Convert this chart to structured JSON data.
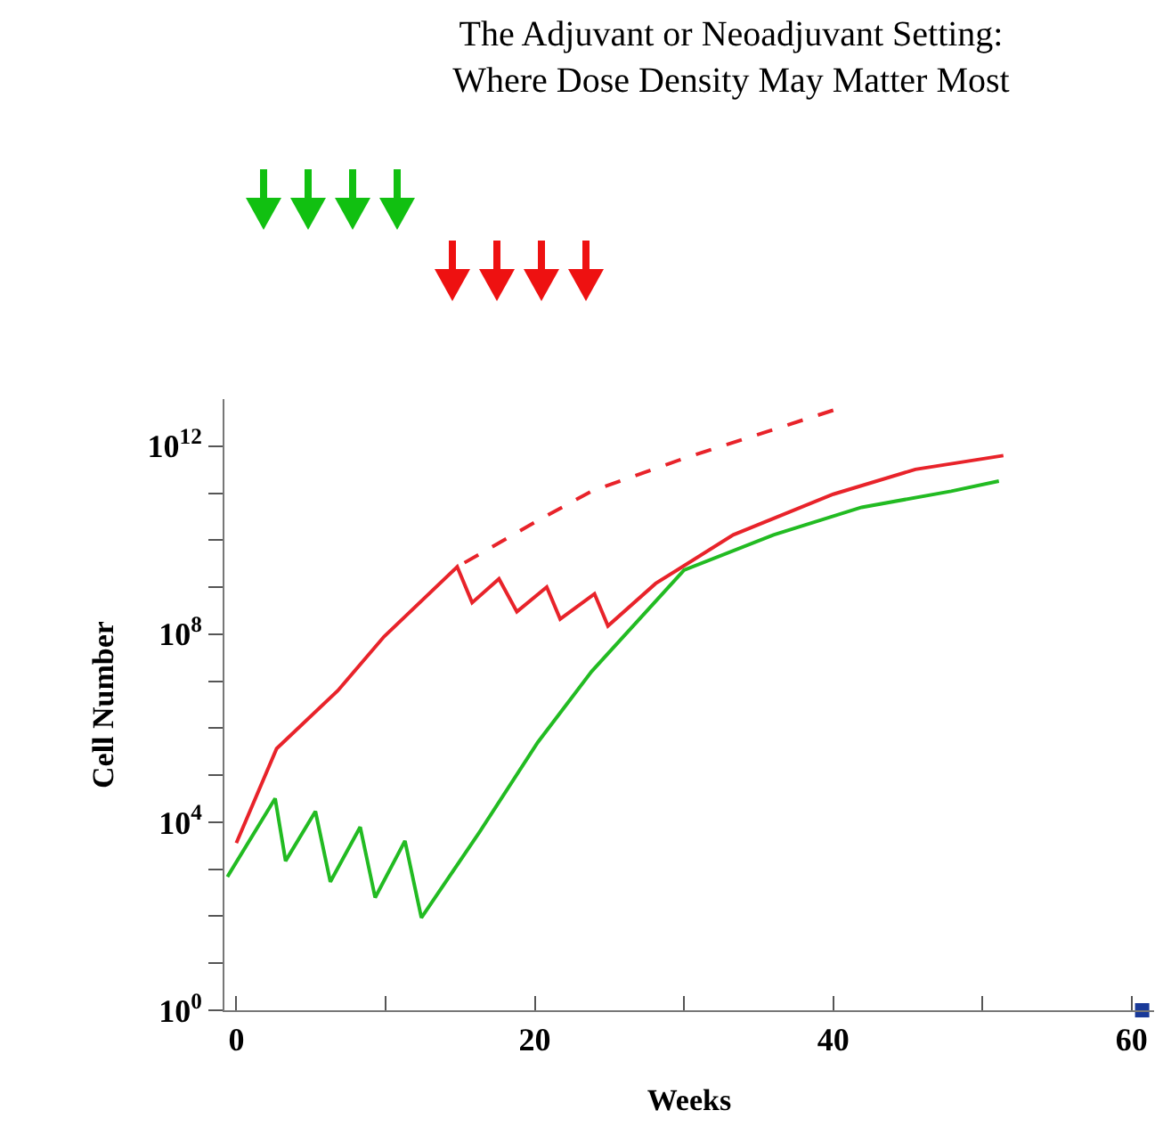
{
  "chart_data": {
    "type": "line",
    "title": "The Adjuvant or Neoadjuvant Setting:\nWhere Dose Density May Matter Most",
    "xlabel": "Weeks",
    "ylabel": "Cell Number",
    "log": "y",
    "grid": false,
    "xlim": [
      -0.8,
      61.5
    ],
    "xticks": [
      0,
      {
        "value": 10,
        "label": null
      },
      20,
      {
        "value": 30,
        "label": null
      },
      40,
      {
        "value": 50,
        "label": null
      },
      60
    ],
    "ylim": [
      1,
      10000000000000.0
    ],
    "yticks": [
      {
        "value": 1,
        "label": "10$^{0}$"
      },
      {
        "value": 10.0,
        "label": null
      },
      {
        "value": 100.0,
        "label": null
      },
      {
        "value": 1000.0,
        "label": null
      },
      {
        "value": 10000.0,
        "label": "10$^{4}$"
      },
      {
        "value": 100000.0,
        "label": null
      },
      {
        "value": 1000000.0,
        "label": null
      },
      {
        "value": 10000000.0,
        "label": null
      },
      {
        "value": 100000000.0,
        "label": "10$^{8}$"
      },
      {
        "value": 1000000000.0,
        "label": null
      },
      {
        "value": 10000000000.0,
        "label": null
      },
      {
        "value": 100000000000.0,
        "label": null
      },
      {
        "value": 1000000000000.0,
        "label": "10$^{12}$"
      }
    ],
    "series": [
      {
        "color": "#e8232a",
        "line_style": "solid",
        "marker": "none",
        "x": [
          0,
          2.7,
          6.8,
          9.9,
          14.8,
          15.8,
          17.6,
          18.8,
          20.8,
          21.7,
          24.0,
          24.9,
          28.1,
          33.3,
          40,
          45.5,
          51.4
        ],
        "values": [
          3600.0,
          370000.0,
          6300000.0,
          89000000.0,
          2700000000.0,
          470000000.0,
          1500000000.0,
          300000000.0,
          1000000000.0,
          210000000.0,
          720000000.0,
          150000000.0,
          1200000000.0,
          13000000000.0,
          95000000000.0,
          320000000000.0,
          630000000000.0
        ]
      },
      {
        "color": "#e8232a",
        "line_style": "dashed",
        "marker": "none",
        "x": [
          40,
          30,
          23.8,
          20.2,
          14.8
        ],
        "values": [
          5800000000000.0,
          550000000000.0,
          110000000000.0,
          26000000000.0,
          2700000000.0
        ]
      },
      {
        "color": "#22bb22",
        "line_style": "solid",
        "marker": "none",
        "x": [
          -0.6,
          2.6,
          3.3,
          5.3,
          6.3,
          8.3,
          9.3,
          11.3,
          12.4,
          16.3,
          20.2,
          23.8,
          30,
          36,
          41.9,
          47.9,
          51.1
        ],
        "values": [
          690.0,
          32000.0,
          1500.0,
          17000.0,
          540.0,
          7900.0,
          250.0,
          4000.0,
          93,
          6200.0,
          500000.0,
          16000000.0,
          2300000000.0,
          13000000000.0,
          50000000000.0,
          110000000000.0,
          180000000000.0
        ]
      },
      {
        "type": "scatter",
        "color": "#1a3a99",
        "marker": "square",
        "x": [
          60.7
        ],
        "values": [
          1
        ]
      }
    ]
  }
}
